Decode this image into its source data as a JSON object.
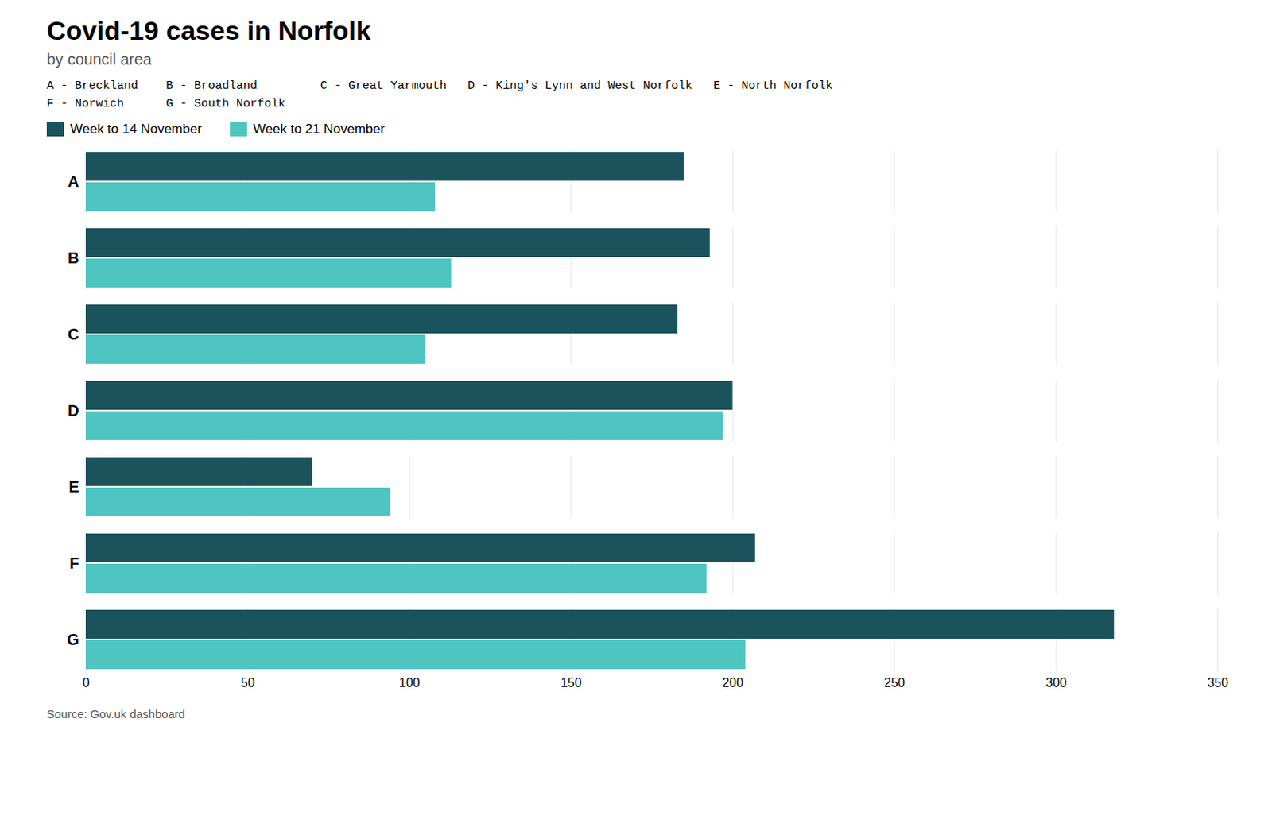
{
  "chart_data": {
    "type": "bar",
    "orientation": "horizontal",
    "title": "Covid-19 cases in Norfolk",
    "subtitle": "by council area",
    "annotations": [
      "A - Breckland    B - Broadland         C - Great Yarmouth   D - King's Lynn and West Norfolk   E - North Norfolk",
      "F - Norwich      G - South Norfolk"
    ],
    "source": "Source: Gov.uk dashboard",
    "categories": [
      "A",
      "B",
      "C",
      "D",
      "E",
      "F",
      "G"
    ],
    "series": [
      {
        "name": "Week to 14 November",
        "color": "#1a535c",
        "values": [
          185,
          193,
          183,
          200,
          70,
          207,
          318
        ]
      },
      {
        "name": "Week to 21 November",
        "color": "#4ec5c1",
        "values": [
          108,
          113,
          105,
          197,
          94,
          192,
          204
        ]
      }
    ],
    "xlim": [
      0,
      350
    ],
    "xticks": [
      0,
      50,
      100,
      150,
      200,
      250,
      300,
      350
    ],
    "grid": true,
    "legend": "upper left"
  }
}
